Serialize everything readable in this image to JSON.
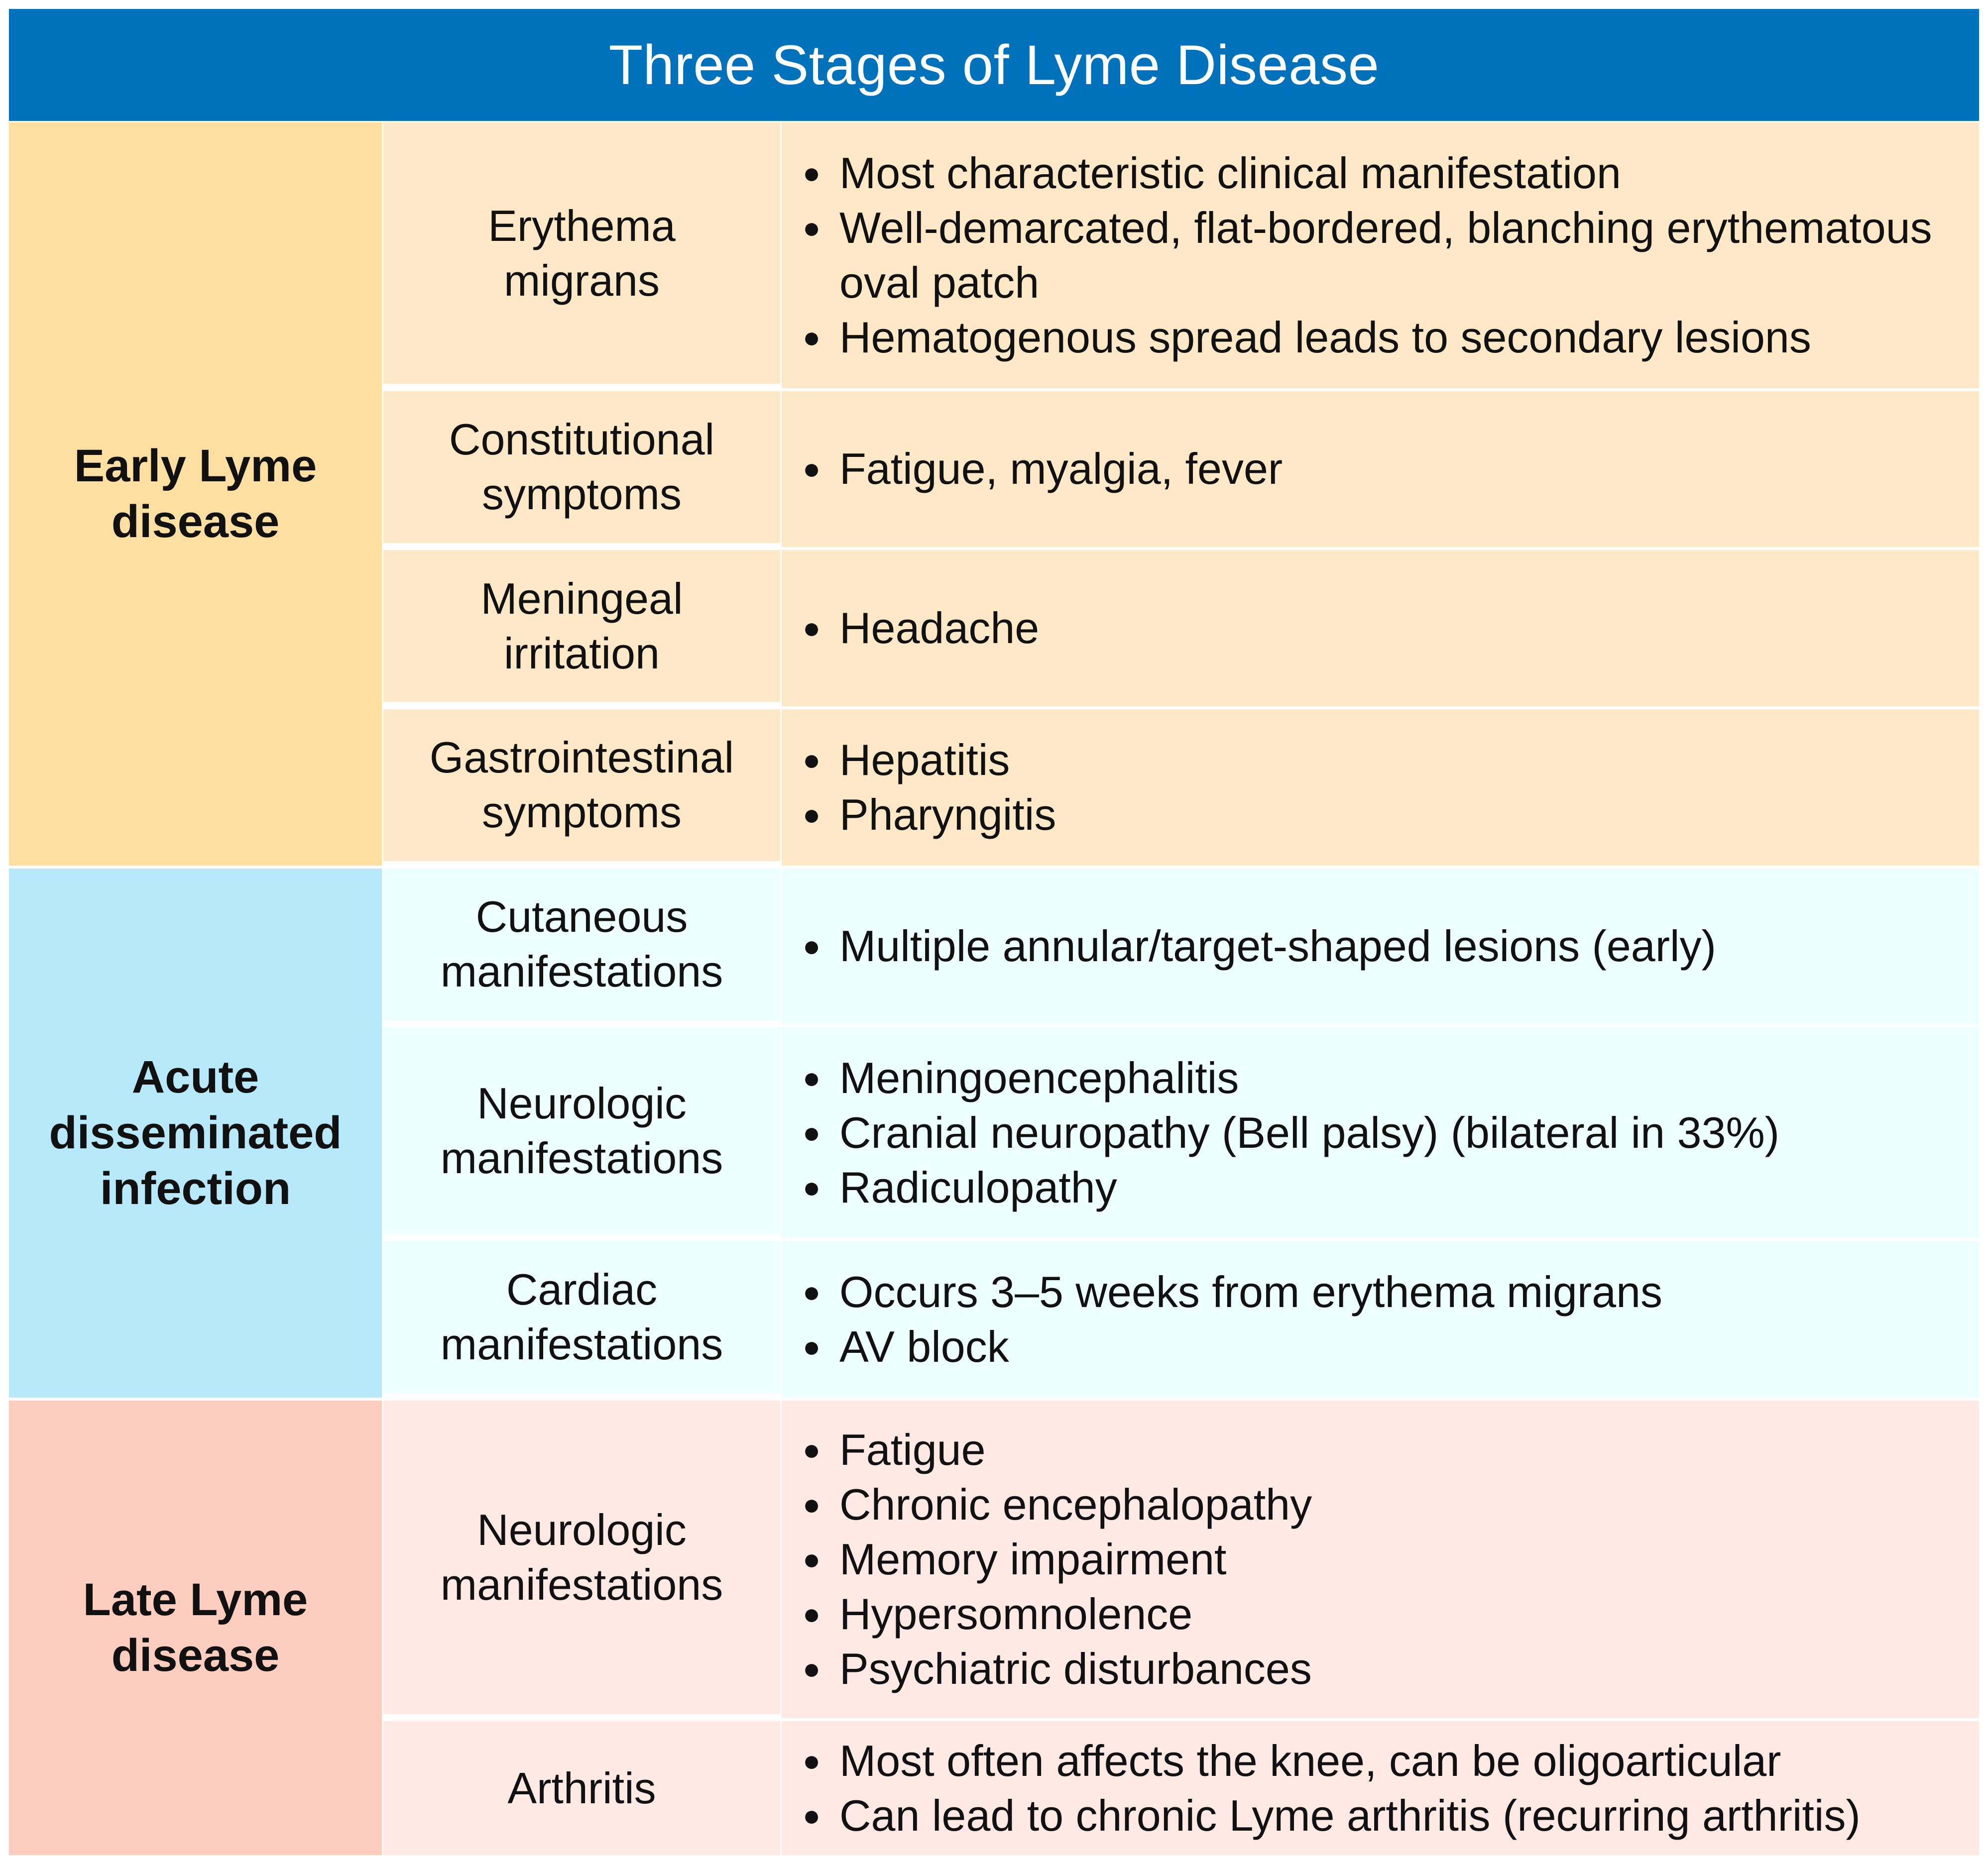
{
  "title": "Three Stages of Lyme Disease",
  "colors": {
    "header_bg": "#0071bb",
    "early_stage_bg": "#fddfa2",
    "early_row_bg": "#fee8c8",
    "acute_stage_bg": "#b7e9fb",
    "acute_row_bg": "#ecfefd",
    "late_stage_bg": "#fdcdc0",
    "late_row_bg": "#ffe9e4"
  },
  "stages": [
    {
      "label": "Early Lyme\ndisease",
      "rows": [
        {
          "category": "Erythema\nmigrans",
          "items": [
            "Most characteristic clinical manifestation",
            "Well-demarcated, flat-bordered, blanching erythematous oval patch",
            "Hematogenous spread leads to secondary lesions"
          ]
        },
        {
          "category": "Constitutional\nsymptoms",
          "items": [
            "Fatigue, myalgia, fever"
          ]
        },
        {
          "category": "Meningeal\nirritation",
          "items": [
            "Headache"
          ]
        },
        {
          "category": "Gastrointestinal\nsymptoms",
          "items": [
            "Hepatitis",
            "Pharyngitis"
          ]
        }
      ]
    },
    {
      "label": "Acute\ndisseminated\ninfection",
      "rows": [
        {
          "category": "Cutaneous\nmanifestations",
          "items": [
            "Multiple annular/target-shaped lesions (early)"
          ]
        },
        {
          "category": "Neurologic\nmanifestations",
          "items": [
            "Meningoencephalitis",
            "Cranial neuropathy (Bell palsy) (bilateral in 33%)",
            "Radiculopathy"
          ]
        },
        {
          "category": "Cardiac\nmanifestations",
          "items": [
            "Occurs 3–5 weeks from erythema migrans",
            "AV block"
          ]
        }
      ]
    },
    {
      "label": "Late Lyme\ndisease",
      "rows": [
        {
          "category": "Neurologic\nmanifestations",
          "items": [
            "Fatigue",
            "Chronic encephalopathy",
            "Memory impairment",
            "Hypersomnolence",
            "Psychiatric disturbances"
          ]
        },
        {
          "category": "Arthritis",
          "items": [
            "Most often affects the knee, can be oligoarticular",
            "Can lead to chronic Lyme arthritis (recurring arthritis)"
          ]
        }
      ]
    }
  ]
}
